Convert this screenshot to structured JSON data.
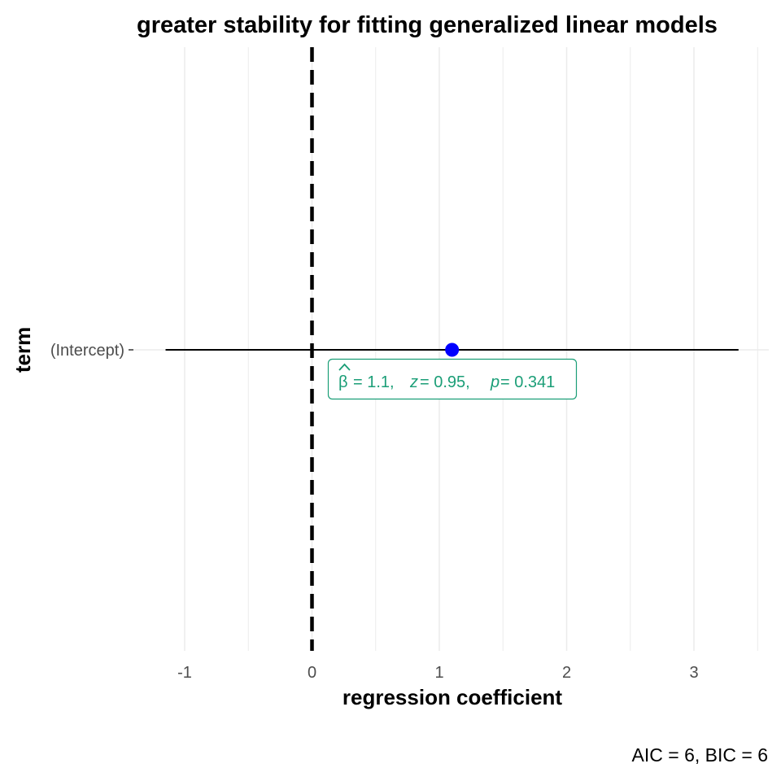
{
  "chart_data": {
    "type": "scatter",
    "title": "greater stability for fitting generalized linear models",
    "xlabel": "regression coefficient",
    "ylabel": "term",
    "xlim": [
      -1.25,
      3.6
    ],
    "xticks": [
      -1,
      0,
      1,
      2,
      3
    ],
    "xtick_labels": [
      "-1",
      "0",
      "1",
      "2",
      "3"
    ],
    "grid": true,
    "legend": "none",
    "reference_line": {
      "x": 0,
      "style": "dashed"
    },
    "categories": [
      "(Intercept)"
    ],
    "series": [
      {
        "points": [
          {
            "term": "(Intercept)",
            "estimate": 1.1,
            "conf_low": -1.15,
            "conf_high": 3.35
          }
        ]
      }
    ],
    "annotations": [
      {
        "term": "(Intercept)",
        "beta": "1.1",
        "z": "0.95",
        "p": "0.341"
      }
    ],
    "caption": "AIC = 6, BIC = 6",
    "colors": {
      "point": "#0000ff",
      "label": "#1b9e77",
      "grid": "#ebebeb",
      "reference": "#000000"
    }
  }
}
